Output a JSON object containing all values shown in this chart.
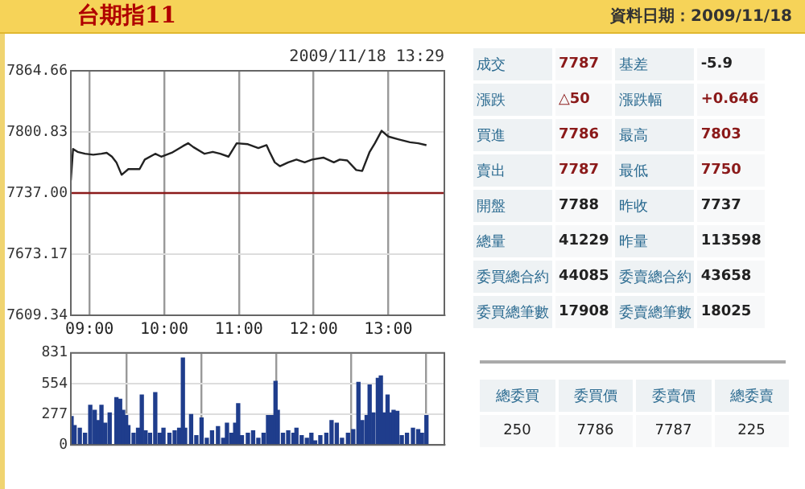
{
  "chart_data": [
    {
      "type": "line",
      "title": "台期指11",
      "annotations": [
        "2009/11/18 13:29"
      ],
      "series": [
        {
          "color": "#222222",
          "x": [
            8.75,
            8.78,
            8.84,
            8.94,
            9.05,
            9.16,
            9.23,
            9.3,
            9.36,
            9.43,
            9.52,
            9.67,
            9.74,
            9.88,
            9.96,
            10.1,
            10.25,
            10.32,
            10.39,
            10.54,
            10.65,
            10.75,
            10.86,
            10.97,
            11.12,
            11.26,
            11.37,
            11.41,
            11.48,
            11.55,
            11.66,
            11.77,
            11.88,
            11.98,
            12.13,
            12.27,
            12.35,
            12.45,
            12.57,
            12.65,
            12.75,
            12.82,
            12.91,
            13.0,
            13.14,
            13.29,
            13.4,
            13.51
          ],
          "values": [
            7750,
            7783,
            7780,
            7778,
            7777,
            7778,
            7779,
            7775,
            7769,
            7756,
            7762,
            7762,
            7772,
            7778,
            7775,
            7779,
            7786,
            7789,
            7785,
            7778,
            7780,
            7778,
            7775,
            7789,
            7788,
            7784,
            7787,
            7780,
            7769,
            7765,
            7769,
            7772,
            7769,
            7772,
            7774,
            7769,
            7772,
            7771,
            7761,
            7760,
            7780,
            7789,
            7802,
            7796,
            7793,
            7790,
            7789,
            7787
          ]
        }
      ],
      "xlim": [
        8.75,
        13.75
      ],
      "xticks": [
        {
          "value": 9,
          "label": "09:00"
        },
        {
          "value": 10,
          "label": "10:00"
        },
        {
          "value": 11,
          "label": "11:00"
        },
        {
          "value": 12,
          "label": "12:00"
        },
        {
          "value": 13,
          "label": "13:00"
        }
      ],
      "ylim": [
        7609.34,
        7864.66
      ],
      "yticks": [
        7609.34,
        7673.17,
        {
          "value": 7737,
          "label": "7737.00"
        },
        7800.83,
        7864.66
      ],
      "grid": true,
      "ref_lines": [
        {
          "axis": "y",
          "value": 7737,
          "color": "#8b1a1a"
        }
      ]
    },
    {
      "type": "bar",
      "color": "#1f3d8c",
      "tick_labels": "y",
      "grid": true,
      "x": [
        8.76,
        8.8,
        8.87,
        8.94,
        9.01,
        9.07,
        9.12,
        9.16,
        9.21,
        9.27,
        9.36,
        9.41,
        9.45,
        9.49,
        9.52,
        9.59,
        9.65,
        9.7,
        9.75,
        9.81,
        9.88,
        9.94,
        9.99,
        10.07,
        10.14,
        10.2,
        10.25,
        10.28,
        10.36,
        10.43,
        10.5,
        10.57,
        10.64,
        10.72,
        10.79,
        10.84,
        10.9,
        10.95,
        10.99,
        11.04,
        11.12,
        11.19,
        11.26,
        11.33,
        11.39,
        11.44,
        11.49,
        11.52,
        11.59,
        11.66,
        11.73,
        11.77,
        11.84,
        11.91,
        11.97,
        12.02,
        12.09,
        12.17,
        12.24,
        12.31,
        12.38,
        12.46,
        12.53,
        12.6,
        12.65,
        12.71,
        12.75,
        12.8,
        12.86,
        12.9,
        12.94,
        12.99,
        13.04,
        13.07,
        13.12,
        13.18,
        13.25,
        13.33,
        13.4,
        13.45,
        13.51
      ],
      "values": [
        257,
        174,
        151,
        106,
        358,
        312,
        220,
        358,
        197,
        289,
        427,
        413,
        312,
        266,
        174,
        106,
        151,
        450,
        128,
        106,
        473,
        106,
        151,
        106,
        128,
        151,
        785,
        151,
        275,
        83,
        243,
        60,
        128,
        165,
        60,
        197,
        106,
        197,
        372,
        83,
        106,
        128,
        60,
        106,
        266,
        266,
        574,
        312,
        106,
        128,
        106,
        151,
        83,
        60,
        106,
        37,
        83,
        106,
        220,
        197,
        60,
        106,
        138,
        565,
        220,
        266,
        542,
        289,
        601,
        624,
        289,
        450,
        289,
        312,
        303,
        83,
        106,
        151,
        138,
        106,
        266
      ],
      "xlim": [
        8.75,
        13.75
      ],
      "xticks": [
        {
          "value": 9,
          "label": null
        },
        {
          "value": 10,
          "label": null
        },
        {
          "value": 11,
          "label": null
        },
        {
          "value": 12,
          "label": null
        },
        {
          "value": 13,
          "label": null
        }
      ],
      "ylim": [
        0,
        831
      ],
      "yticks": [
        0,
        277,
        554,
        831
      ]
    },
    {
      "type": "other",
      "title": "資料日期：2009/11/18",
      "annotations": [
        "成交",
        "7787",
        "基差",
        "-5.9",
        "漲跌",
        "△50",
        "漲跌幅",
        "+0.646",
        "買進",
        "7786",
        "最高",
        "7803",
        "賣出",
        "7787",
        "最低",
        "7750",
        "開盤",
        "7788",
        "昨收",
        "7737",
        "總量",
        "41229",
        "昨量",
        "113598",
        "委買總合約",
        "44085",
        "委賣總合約",
        "43658",
        "委買總筆數",
        "17908",
        "委賣總筆數",
        "18025",
        "總委買",
        "委買價",
        "委賣價",
        "總委賣",
        "250",
        "7786",
        "7787",
        "225"
      ]
    }
  ]
}
